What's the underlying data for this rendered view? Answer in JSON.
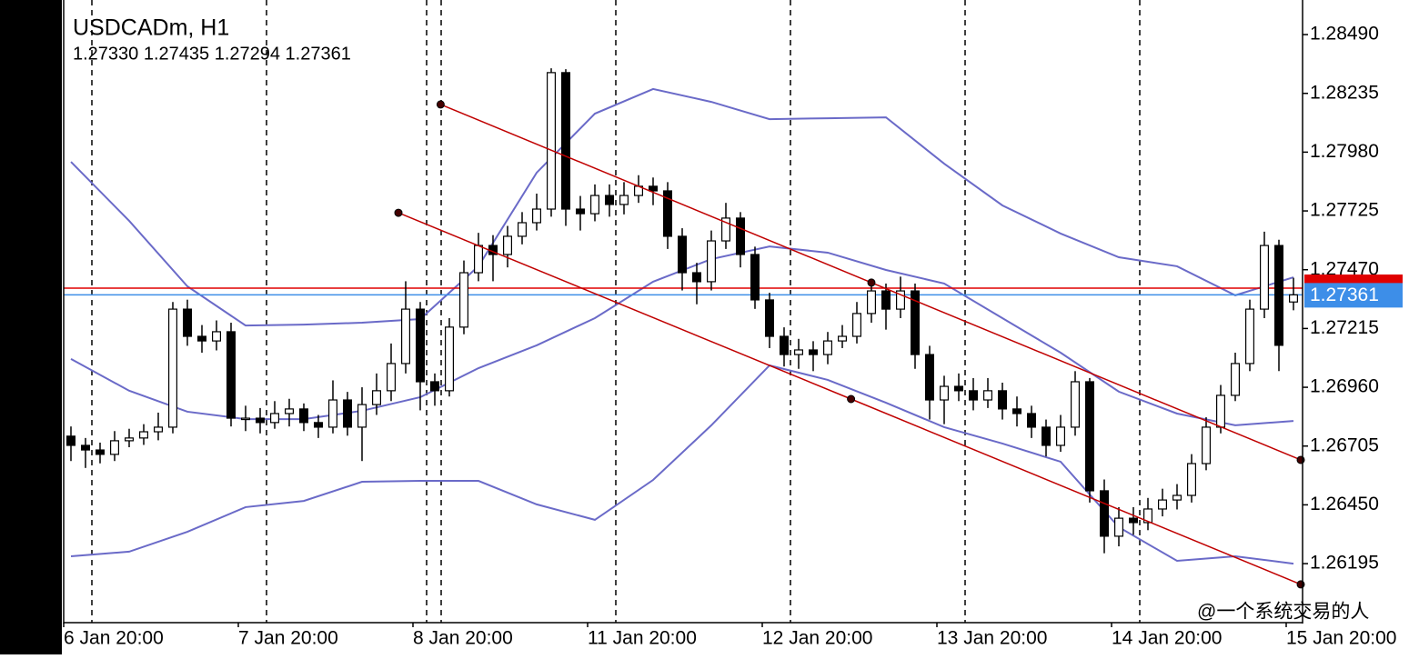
{
  "chart_data": {
    "type": "candlestick",
    "title": "USDCADm, H1",
    "ohlc_text": "1.27330 1.27435 1.27294 1.27361",
    "watermark": "@一个系统交易的人",
    "up_color": "#ffffff",
    "down_color": "#000000",
    "open": [
      1.26748,
      1.26708,
      1.26688,
      1.26669,
      1.26728,
      1.2674,
      1.26767,
      1.26787,
      1.27299,
      1.27181,
      1.27161,
      1.27201,
      1.26826,
      1.26826,
      1.26807,
      1.26846,
      1.26866,
      1.26807,
      1.26787,
      1.26905,
      1.26787,
      1.26885,
      1.26945,
      1.27063,
      1.27299,
      1.26984,
      1.26945,
      1.27221,
      1.27457,
      1.27575,
      1.27536,
      1.27615,
      1.27674,
      1.27733,
      1.28325,
      1.27733,
      1.27713,
      1.27792,
      1.27753,
      1.27792,
      1.27832,
      1.27812,
      1.27615,
      1.27457,
      1.27418,
      1.27595,
      1.27694,
      1.27536,
      1.27339,
      1.27181,
      1.27102,
      1.27122,
      1.27102,
      1.27161,
      1.27181,
      1.2728,
      1.27378,
      1.27299,
      1.27378,
      1.27102,
      1.26905,
      1.26964,
      1.26945,
      1.26905,
      1.26945,
      1.26866,
      1.26846,
      1.26787,
      1.26708,
      1.26787,
      1.26984,
      1.26511,
      1.26314,
      1.26392,
      1.26373,
      1.26432,
      1.26471,
      1.26491,
      1.26629,
      1.26787,
      1.26925,
      1.27063,
      1.27299,
      1.27575,
      1.2733
    ],
    "high": [
      1.2679,
      1.2674,
      1.2672,
      1.2677,
      1.2678,
      1.268,
      1.2685,
      1.2733,
      1.2734,
      1.2723,
      1.2725,
      1.2724,
      1.2688,
      1.2687,
      1.269,
      1.2691,
      1.2689,
      1.2684,
      1.2699,
      1.2694,
      1.2696,
      1.2702,
      1.2715,
      1.2742,
      1.2733,
      1.2702,
      1.2726,
      1.2751,
      1.2763,
      1.2762,
      1.2766,
      1.2772,
      1.278,
      1.28344,
      1.2834,
      1.2779,
      1.2784,
      1.2784,
      1.2785,
      1.2788,
      1.2787,
      1.2785,
      1.2765,
      1.275,
      1.2764,
      1.2776,
      1.2772,
      1.2757,
      1.2737,
      1.2722,
      1.2717,
      1.2716,
      1.272,
      1.2723,
      1.2733,
      1.2742,
      1.2741,
      1.2744,
      1.2741,
      1.2714,
      1.2701,
      1.2702,
      1.27,
      1.27,
      1.2698,
      1.2692,
      1.2688,
      1.2682,
      1.2684,
      1.2703,
      1.27,
      1.2656,
      1.2644,
      1.2644,
      1.2648,
      1.2652,
      1.2654,
      1.2667,
      1.2683,
      1.2697,
      1.2711,
      1.2734,
      1.27635,
      1.276,
      1.27435
    ],
    "low": [
      1.2664,
      1.2661,
      1.2663,
      1.2664,
      1.267,
      1.2671,
      1.2673,
      1.2676,
      1.2714,
      1.2711,
      1.2712,
      1.2679,
      1.2677,
      1.2676,
      1.2678,
      1.2679,
      1.2677,
      1.2674,
      1.2676,
      1.2675,
      1.2664,
      1.2684,
      1.269,
      1.2702,
      1.2686,
      1.2688,
      1.2692,
      1.2719,
      1.2742,
      1.2742,
      1.2748,
      1.2758,
      1.2764,
      1.277,
      1.2766,
      1.2764,
      1.2768,
      1.277,
      1.2771,
      1.2776,
      1.2775,
      1.2756,
      1.2738,
      1.2732,
      1.2738,
      1.2756,
      1.2748,
      1.273,
      1.2713,
      1.2705,
      1.2704,
      1.2703,
      1.2706,
      1.2713,
      1.2715,
      1.2724,
      1.2721,
      1.2726,
      1.2704,
      1.2682,
      1.268,
      1.269,
      1.2686,
      1.2687,
      1.2682,
      1.2679,
      1.2674,
      1.2666,
      1.2668,
      1.2675,
      1.2646,
      1.2624,
      1.2627,
      1.2632,
      1.2634,
      1.264,
      1.2643,
      1.2646,
      1.266,
      1.2676,
      1.269,
      1.2703,
      1.2726,
      1.2703,
      1.27294
    ],
    "close": [
      1.26708,
      1.26688,
      1.26669,
      1.26728,
      1.2674,
      1.26767,
      1.26787,
      1.27299,
      1.27181,
      1.27161,
      1.27201,
      1.26826,
      1.26826,
      1.26807,
      1.26846,
      1.26866,
      1.26807,
      1.26787,
      1.26905,
      1.26787,
      1.26885,
      1.26945,
      1.27063,
      1.27299,
      1.26984,
      1.26945,
      1.27221,
      1.27457,
      1.27575,
      1.27536,
      1.27615,
      1.27674,
      1.27733,
      1.28325,
      1.27733,
      1.27713,
      1.27792,
      1.27753,
      1.27792,
      1.27832,
      1.27812,
      1.27615,
      1.27457,
      1.27418,
      1.27595,
      1.27694,
      1.27536,
      1.27339,
      1.27181,
      1.27102,
      1.27122,
      1.27102,
      1.27161,
      1.27181,
      1.2728,
      1.27378,
      1.27299,
      1.27378,
      1.27102,
      1.26905,
      1.26964,
      1.26945,
      1.26905,
      1.26945,
      1.26866,
      1.26846,
      1.26787,
      1.26708,
      1.26787,
      1.26984,
      1.26511,
      1.26314,
      1.26392,
      1.26373,
      1.26432,
      1.26471,
      1.26491,
      1.26629,
      1.26787,
      1.26925,
      1.27063,
      1.27299,
      1.27575,
      1.27142,
      1.27361
    ],
    "bands": {
      "color": "#6a6ac8",
      "x": [
        0,
        4,
        8,
        12,
        16,
        20,
        24,
        28,
        32,
        36,
        40,
        44,
        48,
        52,
        56,
        60,
        64,
        68,
        72,
        76,
        80,
        84
      ],
      "upper": [
        1.27938,
        1.27682,
        1.27398,
        1.27228,
        1.27232,
        1.2724,
        1.27256,
        1.27485,
        1.27891,
        1.28147,
        1.28254,
        1.28198,
        1.28123,
        1.28127,
        1.28131,
        1.2793,
        1.27749,
        1.27627,
        1.27524,
        1.27485,
        1.27359,
        1.27437
      ],
      "middle": [
        1.27083,
        1.26945,
        1.26854,
        1.26822,
        1.26822,
        1.26858,
        1.26917,
        1.27043,
        1.27142,
        1.2726,
        1.27418,
        1.27516,
        1.27571,
        1.27544,
        1.27469,
        1.2741,
        1.2726,
        1.2711,
        1.26941,
        1.26846,
        1.26795,
        1.26814
      ],
      "lower": [
        1.26227,
        1.26247,
        1.26333,
        1.2644,
        1.26467,
        1.2655,
        1.26554,
        1.26554,
        1.26452,
        1.26385,
        1.26558,
        1.26795,
        1.27055,
        1.26992,
        1.26893,
        1.26787,
        1.26716,
        1.26637,
        1.26353,
        1.26207,
        1.26227,
        1.26195
      ]
    },
    "trend_color": "#c00000",
    "trendlines": [
      {
        "x": [
          25.4,
          55,
          84.5
        ],
        "y": [
          1.28187,
          1.27414,
          1.26645
        ]
      },
      {
        "x": [
          22.5,
          53.6,
          84.5
        ],
        "y": [
          1.27717,
          1.26909,
          1.26105
        ]
      }
    ],
    "bid": 1.27361,
    "bid_color": "#3d8ee8",
    "ask": 1.2739,
    "ask_color": "#e00000",
    "xlim": [
      -0.5,
      84.625
    ],
    "xticks": [
      {
        "value": 0,
        "label": "6 Jan 20:00"
      },
      {
        "value": 12,
        "label": "7 Jan 20:00"
      },
      {
        "value": 24,
        "label": "8 Jan 20:00"
      },
      {
        "value": 36,
        "label": "11 Jan 20:00"
      },
      {
        "value": 48,
        "label": "12 Jan 20:00"
      },
      {
        "value": 60,
        "label": "13 Jan 20:00"
      },
      {
        "value": 72,
        "label": "14 Jan 20:00"
      },
      {
        "value": 84,
        "label": "15 Jan 20:00"
      }
    ],
    "ylim": [
      1.25939,
      1.2864
    ],
    "yticks": [
      {
        "value": 1.2849,
        "label": "1.28490"
      },
      1.28235,
      {
        "value": 1.2798,
        "label": "1.27980"
      },
      1.27725,
      {
        "value": 1.2747,
        "label": "1.27470"
      },
      1.27215,
      {
        "value": 1.2696,
        "label": "1.26960"
      },
      1.26705,
      {
        "value": 1.2645,
        "label": "1.26450"
      },
      1.26195
    ]
  }
}
